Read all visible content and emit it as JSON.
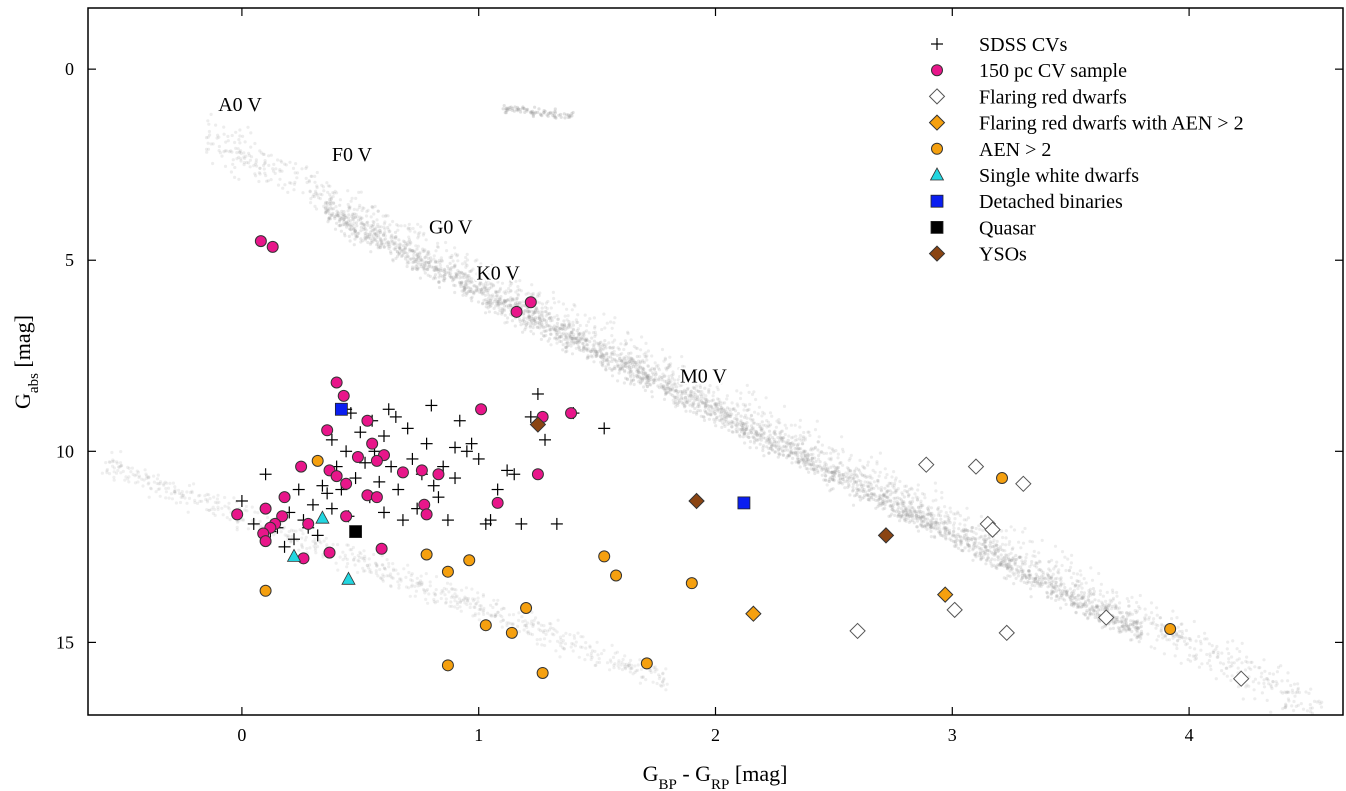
{
  "chart_data": {
    "type": "scatter",
    "title": "",
    "xlabel": {
      "main": "G",
      "sub1": "BP",
      "mid": " - G",
      "sub2": "RP",
      "unit": " [mag]"
    },
    "ylabel": {
      "main": "G",
      "sub": "abs",
      "unit": " [mag]"
    },
    "xlim": [
      -0.65,
      4.65
    ],
    "ylim": [
      16.9,
      -1.6
    ],
    "y_inverted": true,
    "x_ticks": [
      "0",
      "1",
      "2",
      "3",
      "4"
    ],
    "y_ticks": [
      "0",
      "5",
      "10",
      "15"
    ],
    "grid": false,
    "legend_position": "top-right",
    "main_sequence_labels": [
      {
        "text": "A0 V",
        "x": -0.1,
        "y": 1.1
      },
      {
        "text": "F0 V",
        "x": 0.38,
        "y": 2.4
      },
      {
        "text": "G0 V",
        "x": 0.79,
        "y": 4.3
      },
      {
        "text": "K0 V",
        "x": 0.99,
        "y": 5.5
      },
      {
        "text": "M0 V",
        "x": 1.85,
        "y": 8.2
      }
    ],
    "series": [
      {
        "name": "SDSS CVs",
        "marker": "plus",
        "color": "#000000",
        "points": [
          [
            0.0,
            11.3
          ],
          [
            0.05,
            11.9
          ],
          [
            0.1,
            10.6
          ],
          [
            0.12,
            12.1
          ],
          [
            0.15,
            12.0
          ],
          [
            0.18,
            12.5
          ],
          [
            0.2,
            11.6
          ],
          [
            0.22,
            12.3
          ],
          [
            0.24,
            11.0
          ],
          [
            0.26,
            11.8
          ],
          [
            0.28,
            12.0
          ],
          [
            0.3,
            11.4
          ],
          [
            0.32,
            12.2
          ],
          [
            0.34,
            10.9
          ],
          [
            0.36,
            11.1
          ],
          [
            0.38,
            9.7
          ],
          [
            0.38,
            11.5
          ],
          [
            0.4,
            10.4
          ],
          [
            0.42,
            11.0
          ],
          [
            0.44,
            10.0
          ],
          [
            0.45,
            11.7
          ],
          [
            0.46,
            9.0
          ],
          [
            0.48,
            10.7
          ],
          [
            0.5,
            9.5
          ],
          [
            0.52,
            10.3
          ],
          [
            0.54,
            11.2
          ],
          [
            0.55,
            9.2
          ],
          [
            0.56,
            10.0
          ],
          [
            0.58,
            10.8
          ],
          [
            0.6,
            9.6
          ],
          [
            0.6,
            11.6
          ],
          [
            0.62,
            8.9
          ],
          [
            0.63,
            10.4
          ],
          [
            0.65,
            9.1
          ],
          [
            0.66,
            11.0
          ],
          [
            0.68,
            11.8
          ],
          [
            0.7,
            9.4
          ],
          [
            0.72,
            10.2
          ],
          [
            0.74,
            11.5
          ],
          [
            0.76,
            10.6
          ],
          [
            0.78,
            9.8
          ],
          [
            0.8,
            8.8
          ],
          [
            0.81,
            10.9
          ],
          [
            0.83,
            11.2
          ],
          [
            0.85,
            10.4
          ],
          [
            0.87,
            11.8
          ],
          [
            0.9,
            10.7
          ],
          [
            0.92,
            9.2
          ],
          [
            0.95,
            10.0
          ],
          [
            0.97,
            9.8
          ],
          [
            1.0,
            10.2
          ],
          [
            1.03,
            11.9
          ],
          [
            1.05,
            11.8
          ],
          [
            1.08,
            11.0
          ],
          [
            1.12,
            10.5
          ],
          [
            1.15,
            10.6
          ],
          [
            1.18,
            11.9
          ],
          [
            1.22,
            9.1
          ],
          [
            1.25,
            8.5
          ],
          [
            1.28,
            9.7
          ],
          [
            1.33,
            11.9
          ],
          [
            1.4,
            9.0
          ],
          [
            1.53,
            9.4
          ],
          [
            0.44,
            8.9
          ],
          [
            0.9,
            9.9
          ]
        ]
      },
      {
        "name": "150 pc CV sample",
        "marker": "circle",
        "color": "#e8168a",
        "points": [
          [
            0.08,
            4.5
          ],
          [
            0.13,
            4.65
          ],
          [
            1.16,
            6.35
          ],
          [
            1.22,
            6.1
          ],
          [
            0.4,
            8.2
          ],
          [
            0.43,
            8.55
          ],
          [
            1.01,
            8.9
          ],
          [
            1.27,
            9.1
          ],
          [
            1.39,
            9.0
          ],
          [
            0.36,
            9.45
          ],
          [
            0.53,
            9.2
          ],
          [
            0.55,
            9.8
          ],
          [
            0.6,
            10.1
          ],
          [
            0.49,
            10.15
          ],
          [
            0.57,
            10.25
          ],
          [
            0.25,
            10.4
          ],
          [
            0.37,
            10.5
          ],
          [
            0.4,
            10.65
          ],
          [
            0.44,
            10.85
          ],
          [
            0.68,
            10.55
          ],
          [
            0.76,
            10.5
          ],
          [
            0.83,
            10.6
          ],
          [
            0.77,
            11.4
          ],
          [
            0.78,
            11.65
          ],
          [
            1.08,
            11.35
          ],
          [
            1.25,
            10.6
          ],
          [
            0.53,
            11.15
          ],
          [
            0.57,
            11.2
          ],
          [
            0.44,
            11.7
          ],
          [
            0.18,
            11.2
          ],
          [
            0.17,
            11.7
          ],
          [
            0.1,
            11.5
          ],
          [
            0.14,
            11.9
          ],
          [
            0.12,
            12.0
          ],
          [
            0.09,
            12.15
          ],
          [
            0.1,
            12.35
          ],
          [
            -0.02,
            11.65
          ],
          [
            0.28,
            11.9
          ],
          [
            0.26,
            12.8
          ],
          [
            0.37,
            12.65
          ],
          [
            0.59,
            12.55
          ]
        ]
      },
      {
        "name": "Flaring red dwarfs",
        "marker": "diamond-open",
        "color": "#ffffff",
        "points": [
          [
            2.89,
            10.35
          ],
          [
            3.1,
            10.4
          ],
          [
            3.3,
            10.85
          ],
          [
            3.15,
            11.9
          ],
          [
            3.17,
            12.05
          ],
          [
            3.01,
            14.15
          ],
          [
            2.6,
            14.7
          ],
          [
            3.23,
            14.75
          ],
          [
            3.65,
            14.35
          ],
          [
            4.22,
            15.95
          ]
        ]
      },
      {
        "name": "Flaring red dwarfs with AEN > 2",
        "marker": "diamond",
        "color": "#f5a00f",
        "points": [
          [
            2.16,
            14.25
          ],
          [
            2.97,
            13.75
          ]
        ]
      },
      {
        "name": "AEN > 2",
        "marker": "circle",
        "color": "#f5a00f",
        "points": [
          [
            0.32,
            10.25
          ],
          [
            0.1,
            13.65
          ],
          [
            0.78,
            12.7
          ],
          [
            0.87,
            13.15
          ],
          [
            0.96,
            12.85
          ],
          [
            1.03,
            14.55
          ],
          [
            1.14,
            14.75
          ],
          [
            1.2,
            14.1
          ],
          [
            1.53,
            12.75
          ],
          [
            1.58,
            13.25
          ],
          [
            1.9,
            13.45
          ],
          [
            0.87,
            15.6
          ],
          [
            1.27,
            15.8
          ],
          [
            1.71,
            15.55
          ],
          [
            3.21,
            10.7
          ],
          [
            3.92,
            14.65
          ]
        ]
      },
      {
        "name": "Single white dwarfs",
        "marker": "triangle",
        "color": "#22d6e0",
        "points": [
          [
            0.34,
            11.75
          ],
          [
            0.22,
            12.75
          ],
          [
            0.45,
            13.35
          ]
        ]
      },
      {
        "name": "Detached binaries",
        "marker": "square",
        "color": "#0a1ef0",
        "points": [
          [
            0.42,
            8.9
          ],
          [
            2.12,
            11.35
          ]
        ]
      },
      {
        "name": "Quasar",
        "marker": "square",
        "color": "#000000",
        "points": [
          [
            0.48,
            12.1
          ]
        ]
      },
      {
        "name": "YSOs",
        "marker": "diamond",
        "color": "#8b4513",
        "points": [
          [
            1.25,
            9.3
          ],
          [
            1.92,
            11.3
          ],
          [
            2.72,
            12.2
          ]
        ]
      }
    ]
  }
}
